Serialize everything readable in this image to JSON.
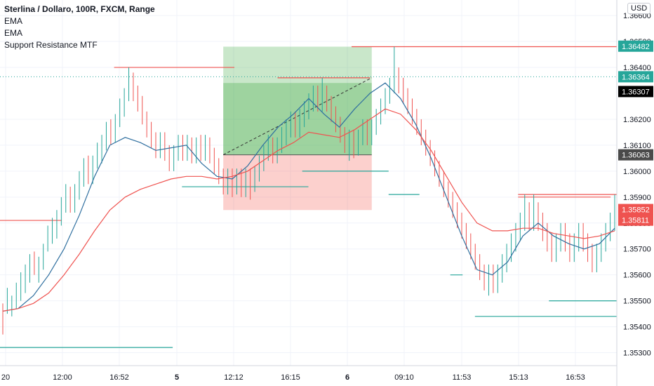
{
  "chart_data": {
    "type": "candlestick",
    "title": "Sterlina / Dollaro, 100R, FXCM, Range",
    "indicators": [
      "EMA",
      "EMA",
      "Support Resistance MTF"
    ],
    "currency_label": "USD",
    "y_axis": {
      "range": [
        1.3525,
        1.3666
      ],
      "tick_labels": [
        "1.35300",
        "1.35400",
        "1.35500",
        "1.35600",
        "1.35700",
        "1.35800",
        "1.35900",
        "1.36000",
        "1.36100",
        "1.36200",
        "1.36400",
        "1.36500",
        "1.36600"
      ]
    },
    "x_axis": {
      "tick_labels": [
        "20",
        "12:00",
        "16:52",
        "5",
        "12:12",
        "16:15",
        "6",
        "09:10",
        "11:53",
        "15:13",
        "16:53"
      ],
      "bold_labels": [
        "5",
        "6"
      ]
    },
    "price_tags": [
      {
        "label": "1.36482",
        "color": "#26a69a"
      },
      {
        "label": "1.36364",
        "color": "#26a69a"
      },
      {
        "label": "1.36307",
        "color": "#000000"
      },
      {
        "label": "1.36063",
        "color": "#4a4a4a"
      },
      {
        "label": "1.35852",
        "color": "#ef5350"
      },
      {
        "label": "1.35811",
        "color": "#ef5350"
      }
    ],
    "current_price": 1.36364,
    "series": [
      {
        "name": "EMA",
        "color": "#2f6f9f",
        "values": [
          1.3546,
          1.3547,
          1.3552,
          1.356,
          1.357,
          1.3583,
          1.3598,
          1.361,
          1.3613,
          1.3611,
          1.3608,
          1.3609,
          1.361,
          1.3603,
          1.3598,
          1.3597,
          1.3602,
          1.361,
          1.3617,
          1.3622,
          1.3628,
          1.3622,
          1.3617,
          1.3624,
          1.363,
          1.3634,
          1.3628,
          1.3618,
          1.3605,
          1.359,
          1.3575,
          1.3562,
          1.356,
          1.3565,
          1.3575,
          1.358,
          1.3575,
          1.3572,
          1.357,
          1.3572,
          1.3578
        ]
      },
      {
        "name": "EMA",
        "color": "#ef5350",
        "values": [
          1.3546,
          1.3547,
          1.3549,
          1.3553,
          1.356,
          1.3568,
          1.3577,
          1.3585,
          1.359,
          1.3593,
          1.3595,
          1.3597,
          1.3598,
          1.3598,
          1.3597,
          1.3598,
          1.36,
          1.3604,
          1.3608,
          1.3611,
          1.3615,
          1.3614,
          1.3613,
          1.3616,
          1.362,
          1.3624,
          1.3622,
          1.3616,
          1.3608,
          1.3598,
          1.3588,
          1.358,
          1.3577,
          1.3577,
          1.3578,
          1.3578,
          1.3576,
          1.3575,
          1.3574,
          1.3575,
          1.3577
        ]
      }
    ],
    "candles": [
      [
        1.3546,
        1.3541,
        1.3549,
        1.3537
      ],
      [
        1.3548,
        1.3552,
        1.3555,
        1.3545
      ],
      [
        1.3546,
        1.3549,
        1.3552,
        1.3544
      ],
      [
        1.355,
        1.3554,
        1.3557,
        1.3547
      ],
      [
        1.3553,
        1.3558,
        1.3561,
        1.355
      ],
      [
        1.3556,
        1.3561,
        1.3564,
        1.3553
      ],
      [
        1.356,
        1.3565,
        1.3568,
        1.3557
      ],
      [
        1.3566,
        1.3563,
        1.3569,
        1.356
      ],
      [
        1.356,
        1.3564,
        1.3567,
        1.3557
      ],
      [
        1.3565,
        1.3569,
        1.3572,
        1.3562
      ],
      [
        1.3572,
        1.3576,
        1.3579,
        1.3569
      ],
      [
        1.3575,
        1.3578,
        1.3582,
        1.3572
      ],
      [
        1.3577,
        1.3582,
        1.3585,
        1.3574
      ],
      [
        1.3582,
        1.3587,
        1.359,
        1.3579
      ],
      [
        1.3587,
        1.3592,
        1.3595,
        1.3584
      ],
      [
        1.3591,
        1.3587,
        1.3594,
        1.3584
      ],
      [
        1.3587,
        1.3592,
        1.3595,
        1.3584
      ],
      [
        1.3592,
        1.3597,
        1.36,
        1.3589
      ],
      [
        1.3597,
        1.3602,
        1.3605,
        1.3594
      ],
      [
        1.3603,
        1.3598,
        1.3606,
        1.3595
      ],
      [
        1.3598,
        1.3603,
        1.3606,
        1.3595
      ],
      [
        1.3604,
        1.3608,
        1.3611,
        1.3601
      ],
      [
        1.3606,
        1.3611,
        1.3614,
        1.3603
      ],
      [
        1.3611,
        1.3616,
        1.3619,
        1.3608
      ],
      [
        1.3617,
        1.3613,
        1.362,
        1.361
      ],
      [
        1.3614,
        1.3619,
        1.3622,
        1.3611
      ],
      [
        1.362,
        1.3625,
        1.3628,
        1.3617
      ],
      [
        1.3624,
        1.3629,
        1.3632,
        1.3621
      ],
      [
        1.363,
        1.3634,
        1.364,
        1.3627
      ],
      [
        1.3635,
        1.363,
        1.3638,
        1.3627
      ],
      [
        1.363,
        1.3626,
        1.3633,
        1.3623
      ],
      [
        1.3626,
        1.3621,
        1.3629,
        1.3618
      ],
      [
        1.362,
        1.3616,
        1.3623,
        1.3613
      ],
      [
        1.3616,
        1.3612,
        1.3619,
        1.3609
      ],
      [
        1.3612,
        1.3608,
        1.3615,
        1.3605
      ],
      [
        1.3608,
        1.3612,
        1.3615,
        1.3605
      ],
      [
        1.3612,
        1.3608,
        1.3615,
        1.3604
      ],
      [
        1.3607,
        1.3603,
        1.361,
        1.36
      ],
      [
        1.3603,
        1.3607,
        1.361,
        1.36
      ],
      [
        1.3607,
        1.3611,
        1.3614,
        1.3604
      ],
      [
        1.3611,
        1.3607,
        1.3614,
        1.3604
      ],
      [
        1.3607,
        1.3611,
        1.3614,
        1.3604
      ],
      [
        1.361,
        1.3606,
        1.3613,
        1.3603
      ],
      [
        1.3606,
        1.361,
        1.3613,
        1.3603
      ],
      [
        1.3611,
        1.3607,
        1.3614,
        1.3604
      ],
      [
        1.3607,
        1.3611,
        1.3614,
        1.3604
      ],
      [
        1.361,
        1.3606,
        1.3613,
        1.3603
      ],
      [
        1.3606,
        1.3602,
        1.3609,
        1.3599
      ],
      [
        1.3602,
        1.3598,
        1.3605,
        1.3595
      ],
      [
        1.3598,
        1.3594,
        1.3601,
        1.3591
      ],
      [
        1.3594,
        1.3598,
        1.3601,
        1.3591
      ],
      [
        1.3598,
        1.3594,
        1.3601,
        1.359
      ],
      [
        1.3594,
        1.3598,
        1.3601,
        1.3591
      ],
      [
        1.3598,
        1.3594,
        1.3601,
        1.359
      ],
      [
        1.3594,
        1.3598,
        1.3601,
        1.359
      ],
      [
        1.3598,
        1.3595,
        1.3601,
        1.3589
      ],
      [
        1.3595,
        1.3599,
        1.3602,
        1.3592
      ],
      [
        1.3599,
        1.3603,
        1.3606,
        1.3596
      ],
      [
        1.3603,
        1.3607,
        1.361,
        1.36
      ],
      [
        1.3607,
        1.3611,
        1.3614,
        1.3604
      ],
      [
        1.361,
        1.3606,
        1.3613,
        1.3603
      ],
      [
        1.3606,
        1.361,
        1.3613,
        1.3603
      ],
      [
        1.361,
        1.3614,
        1.3617,
        1.3607
      ],
      [
        1.3613,
        1.3617,
        1.362,
        1.361
      ],
      [
        1.3616,
        1.362,
        1.3623,
        1.3613
      ],
      [
        1.362,
        1.3616,
        1.3623,
        1.3613
      ],
      [
        1.3616,
        1.362,
        1.3624,
        1.3613
      ],
      [
        1.362,
        1.3624,
        1.3627,
        1.3617
      ],
      [
        1.3623,
        1.3627,
        1.363,
        1.362
      ],
      [
        1.3626,
        1.363,
        1.3633,
        1.3623
      ],
      [
        1.363,
        1.3626,
        1.3633,
        1.3623
      ],
      [
        1.3626,
        1.363,
        1.3636,
        1.3623
      ],
      [
        1.363,
        1.3626,
        1.3633,
        1.3623
      ],
      [
        1.3626,
        1.3622,
        1.3629,
        1.3619
      ],
      [
        1.3622,
        1.3618,
        1.3625,
        1.3615
      ],
      [
        1.3618,
        1.3614,
        1.3621,
        1.3611
      ],
      [
        1.3614,
        1.361,
        1.3617,
        1.3607
      ],
      [
        1.361,
        1.3613,
        1.3616,
        1.3604
      ],
      [
        1.3613,
        1.3609,
        1.3616,
        1.3605
      ],
      [
        1.3609,
        1.3613,
        1.3616,
        1.3606
      ],
      [
        1.3613,
        1.3617,
        1.362,
        1.361
      ],
      [
        1.3617,
        1.3613,
        1.362,
        1.361
      ],
      [
        1.3613,
        1.3617,
        1.362,
        1.361
      ],
      [
        1.3617,
        1.3621,
        1.3624,
        1.3614
      ],
      [
        1.3621,
        1.3625,
        1.3628,
        1.3618
      ],
      [
        1.3625,
        1.3629,
        1.3632,
        1.3622
      ],
      [
        1.3629,
        1.3633,
        1.3636,
        1.3626
      ],
      [
        1.3633,
        1.3637,
        1.3648,
        1.363
      ],
      [
        1.3637,
        1.3633,
        1.364,
        1.363
      ],
      [
        1.3633,
        1.3629,
        1.3636,
        1.3626
      ],
      [
        1.3629,
        1.3625,
        1.3632,
        1.3622
      ],
      [
        1.3625,
        1.3621,
        1.3628,
        1.3618
      ],
      [
        1.3621,
        1.3617,
        1.3624,
        1.3614
      ],
      [
        1.3617,
        1.3613,
        1.362,
        1.361
      ],
      [
        1.3613,
        1.3609,
        1.3616,
        1.3606
      ],
      [
        1.3609,
        1.3605,
        1.3612,
        1.3602
      ],
      [
        1.3605,
        1.3601,
        1.3608,
        1.3598
      ],
      [
        1.3601,
        1.3597,
        1.3604,
        1.3594
      ],
      [
        1.3597,
        1.3593,
        1.36,
        1.359
      ],
      [
        1.3593,
        1.3589,
        1.3596,
        1.3586
      ],
      [
        1.3589,
        1.3585,
        1.3592,
        1.3582
      ],
      [
        1.3585,
        1.3581,
        1.3588,
        1.3578
      ],
      [
        1.3581,
        1.3577,
        1.3584,
        1.3574
      ],
      [
        1.3577,
        1.3573,
        1.358,
        1.357
      ],
      [
        1.3573,
        1.3569,
        1.3576,
        1.3566
      ],
      [
        1.3569,
        1.3565,
        1.3572,
        1.3562
      ],
      [
        1.3565,
        1.3561,
        1.3568,
        1.3558
      ],
      [
        1.3561,
        1.3557,
        1.3564,
        1.3554
      ],
      [
        1.3557,
        1.3561,
        1.3564,
        1.3552
      ],
      [
        1.3561,
        1.3557,
        1.3564,
        1.3553
      ],
      [
        1.3557,
        1.3561,
        1.3564,
        1.3553
      ],
      [
        1.3561,
        1.3565,
        1.3568,
        1.3557
      ],
      [
        1.3565,
        1.3569,
        1.3572,
        1.3561
      ],
      [
        1.3569,
        1.3573,
        1.3576,
        1.3565
      ],
      [
        1.3573,
        1.3577,
        1.358,
        1.3569
      ],
      [
        1.3577,
        1.3581,
        1.3584,
        1.3573
      ],
      [
        1.3581,
        1.3585,
        1.3591,
        1.3577
      ],
      [
        1.3585,
        1.3581,
        1.3588,
        1.3577
      ],
      [
        1.3581,
        1.3585,
        1.3591,
        1.3577
      ],
      [
        1.3585,
        1.3581,
        1.3588,
        1.3577
      ],
      [
        1.3581,
        1.3577,
        1.3584,
        1.3573
      ],
      [
        1.3577,
        1.3573,
        1.358,
        1.3569
      ],
      [
        1.3573,
        1.3569,
        1.3576,
        1.3565
      ],
      [
        1.3569,
        1.3573,
        1.3576,
        1.3565
      ],
      [
        1.3573,
        1.3577,
        1.358,
        1.3569
      ],
      [
        1.3577,
        1.3573,
        1.358,
        1.3569
      ],
      [
        1.3573,
        1.3569,
        1.3576,
        1.3565
      ],
      [
        1.3569,
        1.3573,
        1.3576,
        1.3565
      ],
      [
        1.3573,
        1.3577,
        1.358,
        1.3569
      ],
      [
        1.3577,
        1.3573,
        1.358,
        1.3569
      ],
      [
        1.3573,
        1.3569,
        1.3576,
        1.3565
      ],
      [
        1.3569,
        1.3565,
        1.3572,
        1.3561
      ],
      [
        1.3565,
        1.3569,
        1.3572,
        1.3561
      ],
      [
        1.3569,
        1.3573,
        1.3576,
        1.3565
      ],
      [
        1.3573,
        1.3577,
        1.358,
        1.3569
      ],
      [
        1.3577,
        1.3581,
        1.3584,
        1.3573
      ],
      [
        1.3581,
        1.3585,
        1.3591,
        1.3577
      ]
    ],
    "support_resistance": [
      {
        "type": "resistance",
        "value": 1.3581,
        "color": "#ef5350"
      },
      {
        "type": "support",
        "value": 1.3532,
        "color": "#26a69a"
      },
      {
        "type": "resistance",
        "value": 1.364,
        "color": "#ef5350"
      },
      {
        "type": "support",
        "value": 1.3594,
        "color": "#26a69a"
      },
      {
        "type": "resistance",
        "value": 1.3636,
        "color": "#ef5350"
      },
      {
        "type": "resistance",
        "value": 1.3648,
        "color": "#ef5350"
      },
      {
        "type": "support",
        "value": 1.36,
        "color": "#26a69a"
      },
      {
        "type": "support",
        "value": 1.3591,
        "color": "#26a69a"
      },
      {
        "type": "support",
        "value": 1.356,
        "color": "#26a69a"
      },
      {
        "type": "support",
        "value": 1.3544,
        "color": "#26a69a"
      },
      {
        "type": "resistance",
        "value": 1.3591,
        "color": "#ef5350"
      },
      {
        "type": "support",
        "value": 1.355,
        "color": "#26a69a"
      },
      {
        "type": "resistance",
        "value": 1.359,
        "color": "#ef5350"
      }
    ],
    "position": {
      "entry": 1.36063,
      "target": 1.3648,
      "stop": 1.3585
    },
    "grid": true
  }
}
